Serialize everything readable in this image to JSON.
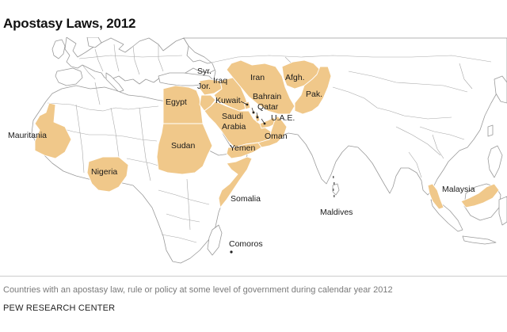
{
  "title": "Apostasy Laws, 2012",
  "caption": "Countries with an apostasy law, rule or policy at some level of government during calendar year 2012",
  "source": "PEW RESEARCH CENTER",
  "highlight_color": "#f0c88a",
  "border_color": "#9a9a9a",
  "labels": {
    "syria": "Syr.",
    "jordan": "Jor.",
    "iraq": "Iraq",
    "iran": "Iran",
    "afghanistan": "Afgh.",
    "pakistan": "Pak.",
    "egypt": "Egypt",
    "kuwait": "Kuwait",
    "bahrain": "Bahrain",
    "qatar": "Qatar",
    "uae": "U.A.E.",
    "saudi_line1": "Saudi",
    "saudi_line2": "Arabia",
    "oman": "Oman",
    "yemen": "Yemen",
    "mauritania": "Mauritania",
    "sudan": "Sudan",
    "nigeria": "Nigeria",
    "somalia": "Somalia",
    "maldives": "Maldives",
    "comoros": "Comoros",
    "malaysia": "Malaysia"
  }
}
